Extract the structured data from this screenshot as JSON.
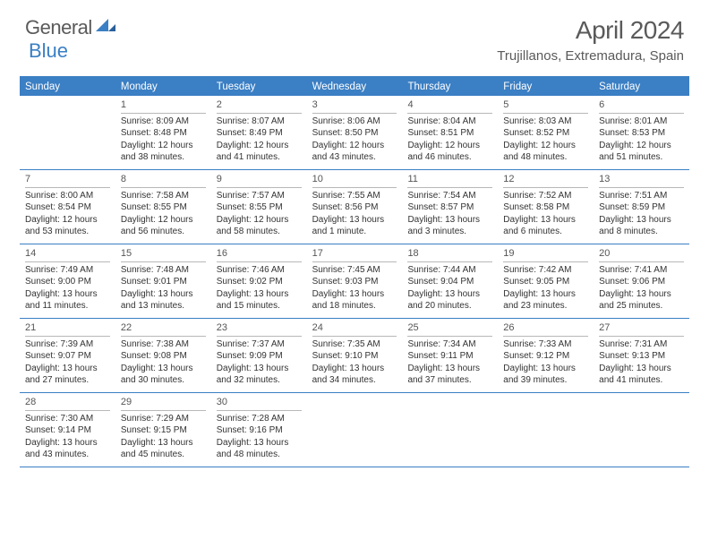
{
  "logo": {
    "text1": "General",
    "text2": "Blue"
  },
  "title": "April 2024",
  "location": "Trujillanos, Extremadura, Spain",
  "colors": {
    "accent": "#3b7fc4",
    "text": "#333333",
    "muted": "#5a5a5a",
    "divider": "#b8b8b8",
    "background": "#ffffff"
  },
  "typography": {
    "title_fontsize": 28,
    "location_fontsize": 15,
    "dow_fontsize": 11.5,
    "daynum_fontsize": 11,
    "info_fontsize": 10
  },
  "dow": [
    "Sunday",
    "Monday",
    "Tuesday",
    "Wednesday",
    "Thursday",
    "Friday",
    "Saturday"
  ],
  "weeks": [
    [
      {
        "blank": true
      },
      {
        "num": "1",
        "sunrise": "Sunrise: 8:09 AM",
        "sunset": "Sunset: 8:48 PM",
        "day1": "Daylight: 12 hours",
        "day2": "and 38 minutes."
      },
      {
        "num": "2",
        "sunrise": "Sunrise: 8:07 AM",
        "sunset": "Sunset: 8:49 PM",
        "day1": "Daylight: 12 hours",
        "day2": "and 41 minutes."
      },
      {
        "num": "3",
        "sunrise": "Sunrise: 8:06 AM",
        "sunset": "Sunset: 8:50 PM",
        "day1": "Daylight: 12 hours",
        "day2": "and 43 minutes."
      },
      {
        "num": "4",
        "sunrise": "Sunrise: 8:04 AM",
        "sunset": "Sunset: 8:51 PM",
        "day1": "Daylight: 12 hours",
        "day2": "and 46 minutes."
      },
      {
        "num": "5",
        "sunrise": "Sunrise: 8:03 AM",
        "sunset": "Sunset: 8:52 PM",
        "day1": "Daylight: 12 hours",
        "day2": "and 48 minutes."
      },
      {
        "num": "6",
        "sunrise": "Sunrise: 8:01 AM",
        "sunset": "Sunset: 8:53 PM",
        "day1": "Daylight: 12 hours",
        "day2": "and 51 minutes."
      }
    ],
    [
      {
        "num": "7",
        "sunrise": "Sunrise: 8:00 AM",
        "sunset": "Sunset: 8:54 PM",
        "day1": "Daylight: 12 hours",
        "day2": "and 53 minutes."
      },
      {
        "num": "8",
        "sunrise": "Sunrise: 7:58 AM",
        "sunset": "Sunset: 8:55 PM",
        "day1": "Daylight: 12 hours",
        "day2": "and 56 minutes."
      },
      {
        "num": "9",
        "sunrise": "Sunrise: 7:57 AM",
        "sunset": "Sunset: 8:55 PM",
        "day1": "Daylight: 12 hours",
        "day2": "and 58 minutes."
      },
      {
        "num": "10",
        "sunrise": "Sunrise: 7:55 AM",
        "sunset": "Sunset: 8:56 PM",
        "day1": "Daylight: 13 hours",
        "day2": "and 1 minute."
      },
      {
        "num": "11",
        "sunrise": "Sunrise: 7:54 AM",
        "sunset": "Sunset: 8:57 PM",
        "day1": "Daylight: 13 hours",
        "day2": "and 3 minutes."
      },
      {
        "num": "12",
        "sunrise": "Sunrise: 7:52 AM",
        "sunset": "Sunset: 8:58 PM",
        "day1": "Daylight: 13 hours",
        "day2": "and 6 minutes."
      },
      {
        "num": "13",
        "sunrise": "Sunrise: 7:51 AM",
        "sunset": "Sunset: 8:59 PM",
        "day1": "Daylight: 13 hours",
        "day2": "and 8 minutes."
      }
    ],
    [
      {
        "num": "14",
        "sunrise": "Sunrise: 7:49 AM",
        "sunset": "Sunset: 9:00 PM",
        "day1": "Daylight: 13 hours",
        "day2": "and 11 minutes."
      },
      {
        "num": "15",
        "sunrise": "Sunrise: 7:48 AM",
        "sunset": "Sunset: 9:01 PM",
        "day1": "Daylight: 13 hours",
        "day2": "and 13 minutes."
      },
      {
        "num": "16",
        "sunrise": "Sunrise: 7:46 AM",
        "sunset": "Sunset: 9:02 PM",
        "day1": "Daylight: 13 hours",
        "day2": "and 15 minutes."
      },
      {
        "num": "17",
        "sunrise": "Sunrise: 7:45 AM",
        "sunset": "Sunset: 9:03 PM",
        "day1": "Daylight: 13 hours",
        "day2": "and 18 minutes."
      },
      {
        "num": "18",
        "sunrise": "Sunrise: 7:44 AM",
        "sunset": "Sunset: 9:04 PM",
        "day1": "Daylight: 13 hours",
        "day2": "and 20 minutes."
      },
      {
        "num": "19",
        "sunrise": "Sunrise: 7:42 AM",
        "sunset": "Sunset: 9:05 PM",
        "day1": "Daylight: 13 hours",
        "day2": "and 23 minutes."
      },
      {
        "num": "20",
        "sunrise": "Sunrise: 7:41 AM",
        "sunset": "Sunset: 9:06 PM",
        "day1": "Daylight: 13 hours",
        "day2": "and 25 minutes."
      }
    ],
    [
      {
        "num": "21",
        "sunrise": "Sunrise: 7:39 AM",
        "sunset": "Sunset: 9:07 PM",
        "day1": "Daylight: 13 hours",
        "day2": "and 27 minutes."
      },
      {
        "num": "22",
        "sunrise": "Sunrise: 7:38 AM",
        "sunset": "Sunset: 9:08 PM",
        "day1": "Daylight: 13 hours",
        "day2": "and 30 minutes."
      },
      {
        "num": "23",
        "sunrise": "Sunrise: 7:37 AM",
        "sunset": "Sunset: 9:09 PM",
        "day1": "Daylight: 13 hours",
        "day2": "and 32 minutes."
      },
      {
        "num": "24",
        "sunrise": "Sunrise: 7:35 AM",
        "sunset": "Sunset: 9:10 PM",
        "day1": "Daylight: 13 hours",
        "day2": "and 34 minutes."
      },
      {
        "num": "25",
        "sunrise": "Sunrise: 7:34 AM",
        "sunset": "Sunset: 9:11 PM",
        "day1": "Daylight: 13 hours",
        "day2": "and 37 minutes."
      },
      {
        "num": "26",
        "sunrise": "Sunrise: 7:33 AM",
        "sunset": "Sunset: 9:12 PM",
        "day1": "Daylight: 13 hours",
        "day2": "and 39 minutes."
      },
      {
        "num": "27",
        "sunrise": "Sunrise: 7:31 AM",
        "sunset": "Sunset: 9:13 PM",
        "day1": "Daylight: 13 hours",
        "day2": "and 41 minutes."
      }
    ],
    [
      {
        "num": "28",
        "sunrise": "Sunrise: 7:30 AM",
        "sunset": "Sunset: 9:14 PM",
        "day1": "Daylight: 13 hours",
        "day2": "and 43 minutes."
      },
      {
        "num": "29",
        "sunrise": "Sunrise: 7:29 AM",
        "sunset": "Sunset: 9:15 PM",
        "day1": "Daylight: 13 hours",
        "day2": "and 45 minutes."
      },
      {
        "num": "30",
        "sunrise": "Sunrise: 7:28 AM",
        "sunset": "Sunset: 9:16 PM",
        "day1": "Daylight: 13 hours",
        "day2": "and 48 minutes."
      },
      {
        "blank": true
      },
      {
        "blank": true
      },
      {
        "blank": true
      },
      {
        "blank": true
      }
    ]
  ]
}
